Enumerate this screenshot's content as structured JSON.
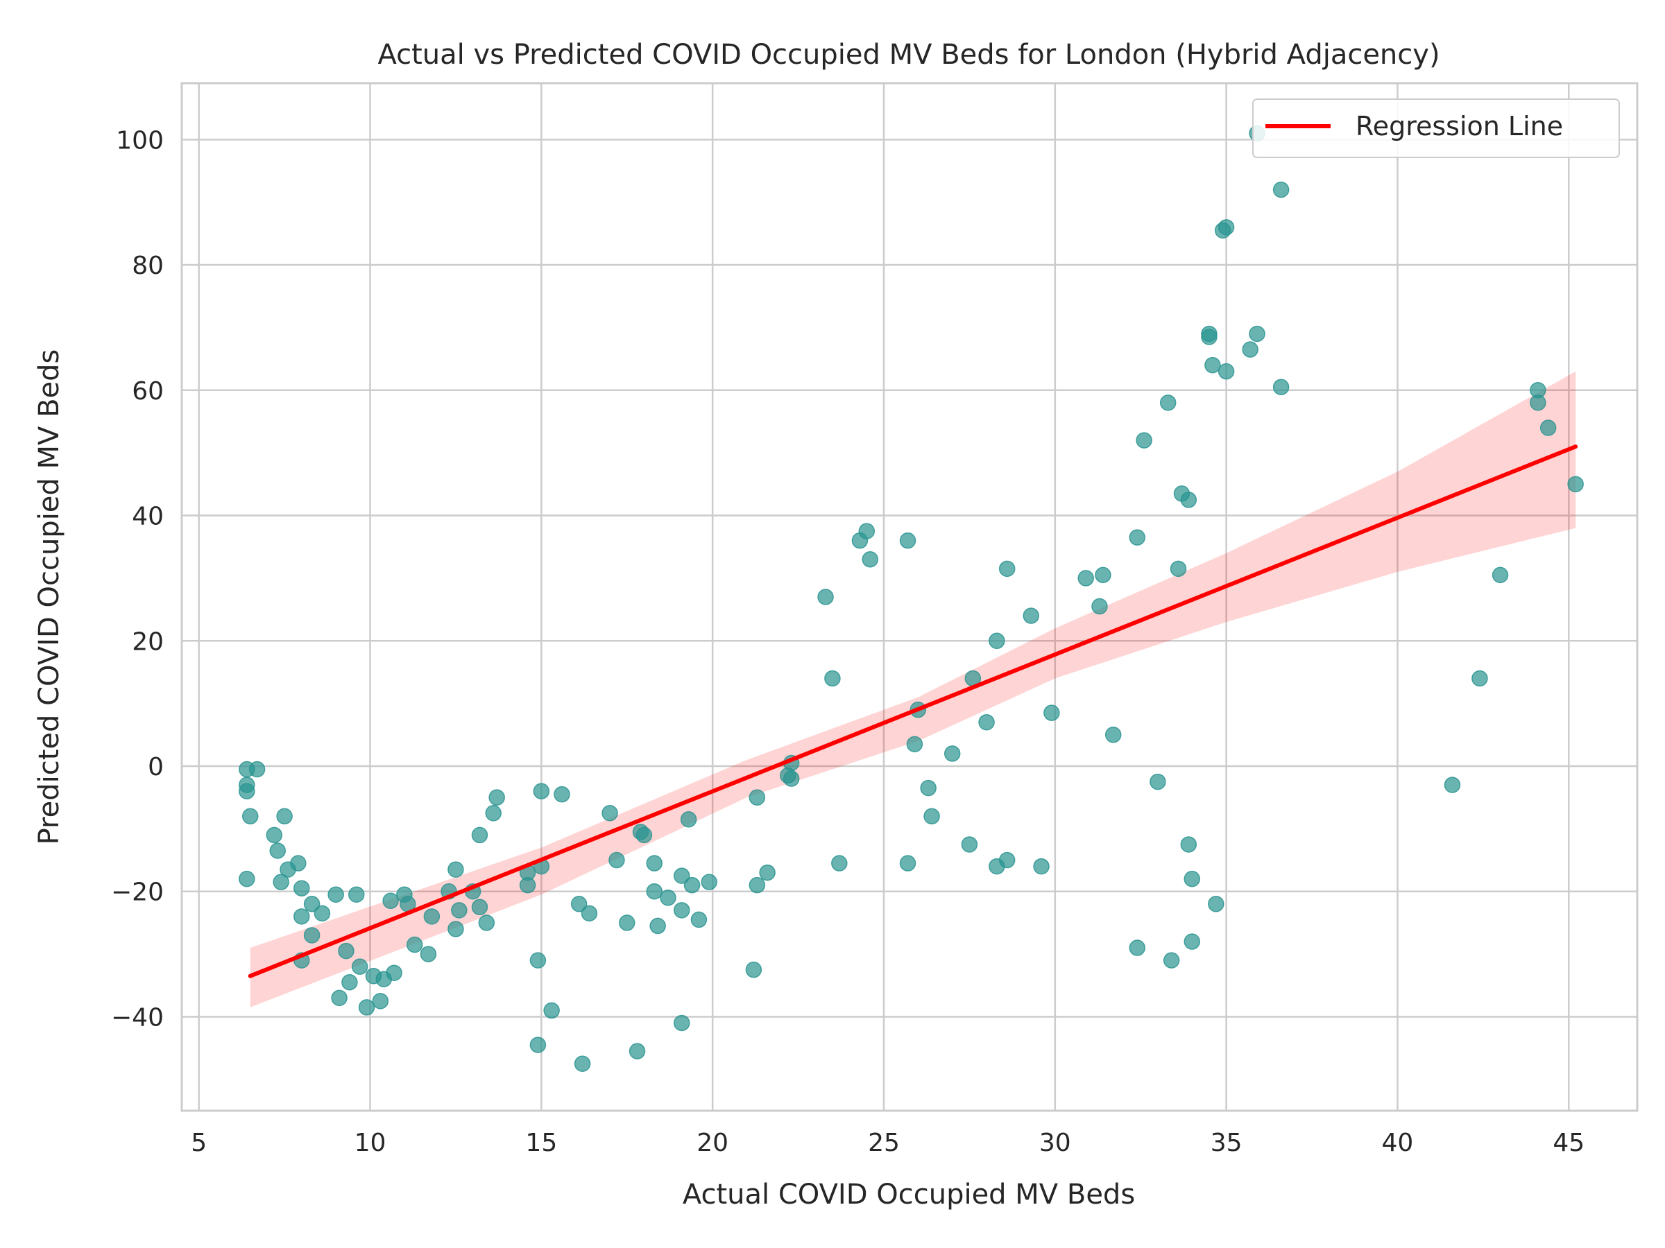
{
  "chart_data": {
    "type": "scatter",
    "title": "Actual vs Predicted COVID Occupied MV Beds for London (Hybrid Adjacency)",
    "xlabel": "Actual COVID Occupied MV Beds",
    "ylabel": "Predicted COVID Occupied MV Beds",
    "xlim": [
      4.5,
      47.0
    ],
    "ylim": [
      -55,
      109
    ],
    "xticks": [
      5,
      10,
      15,
      20,
      25,
      30,
      35,
      40,
      45
    ],
    "xtick_labels": [
      "5",
      "10",
      "15",
      "20",
      "25",
      "30",
      "35",
      "40",
      "45"
    ],
    "yticks": [
      -40,
      -20,
      0,
      20,
      40,
      60,
      80,
      100
    ],
    "ytick_labels": [
      "−40",
      "−20",
      "0",
      "20",
      "40",
      "60",
      "80",
      "100"
    ],
    "grid": true,
    "legend": {
      "position": "top-right",
      "entries": [
        "Regression Line"
      ]
    },
    "colors": {
      "points": "#2a9490",
      "regression": "#ff0000",
      "band": "#ff0000"
    },
    "series": [
      {
        "type": "scatter",
        "points": [
          [
            6.4,
            -0.5
          ],
          [
            6.4,
            -3
          ],
          [
            6.4,
            -4
          ],
          [
            6.7,
            -0.5
          ],
          [
            6.5,
            -8
          ],
          [
            6.4,
            -18
          ],
          [
            7.2,
            -11
          ],
          [
            7.3,
            -13.5
          ],
          [
            7.5,
            -8
          ],
          [
            7.4,
            -18.5
          ],
          [
            7.6,
            -16.5
          ],
          [
            7.9,
            -15.5
          ],
          [
            8.0,
            -19.5
          ],
          [
            8.0,
            -24
          ],
          [
            8.0,
            -31
          ],
          [
            8.3,
            -22
          ],
          [
            8.3,
            -27
          ],
          [
            8.6,
            -23.5
          ],
          [
            9.0,
            -20.5
          ],
          [
            9.1,
            -37
          ],
          [
            9.3,
            -29.5
          ],
          [
            9.4,
            -34.5
          ],
          [
            9.6,
            -20.5
          ],
          [
            9.7,
            -32
          ],
          [
            9.9,
            -38.5
          ],
          [
            10.1,
            -33.5
          ],
          [
            10.3,
            -37.5
          ],
          [
            10.4,
            -34
          ],
          [
            10.6,
            -21.5
          ],
          [
            10.7,
            -33
          ],
          [
            11.0,
            -20.5
          ],
          [
            11.1,
            -22
          ],
          [
            11.3,
            -28.5
          ],
          [
            11.7,
            -30
          ],
          [
            11.8,
            -24
          ],
          [
            12.3,
            -20
          ],
          [
            12.5,
            -16.5
          ],
          [
            12.5,
            -26
          ],
          [
            12.6,
            -23
          ],
          [
            13.0,
            -20
          ],
          [
            13.2,
            -11
          ],
          [
            13.2,
            -22.5
          ],
          [
            13.4,
            -25
          ],
          [
            13.6,
            -7.5
          ],
          [
            13.7,
            -5
          ],
          [
            14.6,
            -17
          ],
          [
            14.6,
            -19
          ],
          [
            14.9,
            -31
          ],
          [
            14.9,
            -44.5
          ],
          [
            15.0,
            -16
          ],
          [
            15.0,
            -4
          ],
          [
            15.3,
            -39
          ],
          [
            15.6,
            -4.5
          ],
          [
            16.1,
            -22
          ],
          [
            16.2,
            -47.5
          ],
          [
            16.4,
            -23.5
          ],
          [
            17.0,
            -7.5
          ],
          [
            17.2,
            -15
          ],
          [
            17.5,
            -25
          ],
          [
            17.8,
            -45.5
          ],
          [
            17.9,
            -10.5
          ],
          [
            18.0,
            -11
          ],
          [
            18.3,
            -15.5
          ],
          [
            18.3,
            -20
          ],
          [
            18.4,
            -25.5
          ],
          [
            18.7,
            -21
          ],
          [
            19.1,
            -17.5
          ],
          [
            19.1,
            -23
          ],
          [
            19.1,
            -41
          ],
          [
            19.3,
            -8.5
          ],
          [
            19.4,
            -19
          ],
          [
            19.6,
            -24.5
          ],
          [
            19.9,
            -18.5
          ],
          [
            21.2,
            -32.5
          ],
          [
            21.3,
            -5
          ],
          [
            21.3,
            -19
          ],
          [
            21.6,
            -17
          ],
          [
            22.2,
            -1.5
          ],
          [
            22.3,
            0.5
          ],
          [
            22.3,
            -2
          ],
          [
            23.3,
            27
          ],
          [
            23.5,
            14
          ],
          [
            23.7,
            -15.5
          ],
          [
            24.3,
            36
          ],
          [
            24.5,
            37.5
          ],
          [
            24.6,
            33
          ],
          [
            25.7,
            36
          ],
          [
            25.7,
            -15.5
          ],
          [
            25.9,
            3.5
          ],
          [
            26.0,
            9
          ],
          [
            26.3,
            -3.5
          ],
          [
            26.4,
            -8
          ],
          [
            27.0,
            2
          ],
          [
            27.5,
            -12.5
          ],
          [
            27.6,
            14
          ],
          [
            28.0,
            7
          ],
          [
            28.3,
            20
          ],
          [
            28.3,
            -16
          ],
          [
            28.6,
            31.5
          ],
          [
            28.6,
            -15
          ],
          [
            29.3,
            24
          ],
          [
            29.6,
            -16
          ],
          [
            29.9,
            8.5
          ],
          [
            30.9,
            30
          ],
          [
            31.3,
            25.5
          ],
          [
            31.4,
            30.5
          ],
          [
            31.7,
            5
          ],
          [
            32.4,
            36.5
          ],
          [
            32.4,
            -29
          ],
          [
            32.6,
            52
          ],
          [
            33.0,
            -2.5
          ],
          [
            33.3,
            58
          ],
          [
            33.4,
            -31
          ],
          [
            33.6,
            31.5
          ],
          [
            33.7,
            43.5
          ],
          [
            33.9,
            42.5
          ],
          [
            33.9,
            -12.5
          ],
          [
            34.0,
            -18
          ],
          [
            34.0,
            -28
          ],
          [
            34.5,
            68.5
          ],
          [
            34.5,
            69
          ],
          [
            34.6,
            64
          ],
          [
            34.7,
            -22
          ],
          [
            34.9,
            85.5
          ],
          [
            35.0,
            86
          ],
          [
            35.0,
            63
          ],
          [
            35.7,
            66.5
          ],
          [
            35.9,
            101
          ],
          [
            35.9,
            69
          ],
          [
            36.6,
            92
          ],
          [
            36.6,
            60.5
          ],
          [
            41.6,
            -3
          ],
          [
            42.4,
            14
          ],
          [
            43.0,
            30.5
          ],
          [
            44.1,
            60
          ],
          [
            44.1,
            58
          ],
          [
            44.4,
            54
          ],
          [
            45.2,
            45
          ]
        ]
      }
    ],
    "regression": {
      "name": "Regression Line",
      "x": [
        6.5,
        45.2
      ],
      "y": [
        -33.5,
        51
      ],
      "ci_lower": [
        [
          6.5,
          -38.5
        ],
        [
          15.0,
          -20.5
        ],
        [
          21.0,
          -5
        ],
        [
          26.0,
          4
        ],
        [
          30.0,
          14
        ],
        [
          35.0,
          23
        ],
        [
          40.0,
          31
        ],
        [
          45.2,
          38
        ]
      ],
      "ci_upper": [
        [
          6.5,
          -29
        ],
        [
          15.0,
          -13
        ],
        [
          21.0,
          1
        ],
        [
          26.0,
          11
        ],
        [
          30.0,
          22
        ],
        [
          35.0,
          34
        ],
        [
          40.0,
          47
        ],
        [
          45.2,
          63
        ]
      ]
    }
  }
}
